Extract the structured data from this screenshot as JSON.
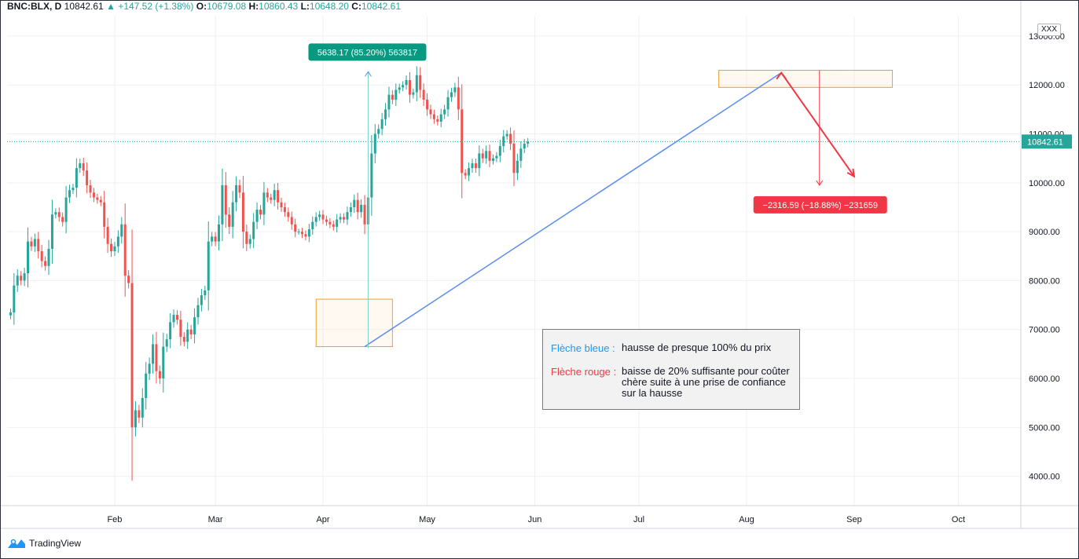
{
  "header": {
    "symbol": "BNC:BLX, D",
    "last": "10842.61",
    "change": "+147.52 (+1.38%)",
    "o_label": "O:",
    "open": "10679.08",
    "h_label": "H:",
    "high": "10860.43",
    "l_label": "L:",
    "low": "10648.20",
    "c_label": "C:",
    "close": "10842.61",
    "up_arrow": "▲"
  },
  "branding": {
    "name": "TradingView"
  },
  "currency_button": "XXX",
  "legend": {
    "blue_key": "Flèche bleue :",
    "blue_text": "hausse de presque 100% du prix",
    "red_key": "Flèche rouge :",
    "red_text": "baisse de 20% suffisante pour coûter chère suite à une prise de confiance sur la hausse"
  },
  "colors": {
    "up": "#26a69a",
    "down": "#ef5350",
    "blue_arrow": "#5b8def",
    "red_arrow": "#f23645",
    "box": "#f0a020"
  },
  "chart_data": {
    "type": "candlestick",
    "symbol": "BNC:BLX",
    "interval": "D",
    "y_ticks": [
      4000,
      5000,
      6000,
      7000,
      8000,
      9000,
      10000,
      11000,
      12000,
      13000
    ],
    "y_tick_labels": [
      "4000.00",
      "5000.00",
      "6000.00",
      "7000.00",
      "8000.00",
      "9000.00",
      "10000.00",
      "11000.00",
      "12000.00",
      "13000.00"
    ],
    "ylim": [
      3400,
      13400
    ],
    "x_ticks": [
      "Feb",
      "Mar",
      "Apr",
      "May",
      "Jun",
      "Jul",
      "Aug",
      "Sep",
      "Oct"
    ],
    "x_tick_days": [
      31,
      60,
      91,
      121,
      152,
      182,
      213,
      244,
      274
    ],
    "xlim": [
      0,
      292
    ],
    "grid": true,
    "last_price": 10842.61,
    "last_price_label": "10842.61",
    "close_series_start_day": 1,
    "close_series": [
      7350,
      7900,
      8100,
      8000,
      8150,
      8800,
      8700,
      8850,
      8600,
      8400,
      8300,
      8650,
      9350,
      9400,
      9300,
      9200,
      9700,
      9850,
      9900,
      10300,
      10400,
      10250,
      9950,
      9800,
      9700,
      9650,
      9600,
      9100,
      8750,
      8600,
      8700,
      8900,
      9150,
      8100,
      7950,
      5000,
      5350,
      5200,
      5600,
      6100,
      6300,
      6700,
      6150,
      6000,
      6650,
      6800,
      7150,
      7300,
      7200,
      6850,
      6750,
      7000,
      6900,
      7250,
      7500,
      7700,
      7800,
      8800,
      8900,
      8800,
      9150,
      9950,
      9350,
      9100,
      9600,
      9950,
      9800,
      9000,
      8750,
      8850,
      9200,
      9450,
      9350,
      9800,
      9700,
      9650,
      9850,
      9600,
      9500,
      9400,
      9300,
      9150,
      9000,
      9000,
      8950,
      8900,
      9050,
      9200,
      9300,
      9350,
      9250,
      9200,
      9150,
      9100,
      9250,
      9300,
      9250,
      9400,
      9500,
      9650,
      9400,
      9550,
      9150,
      9700,
      10600,
      11000,
      11100,
      11300,
      11500,
      11800,
      11700,
      11900,
      11950,
      12000,
      12100,
      11800,
      11850,
      12200,
      11900,
      11700,
      11500,
      11400,
      11300,
      11250,
      11400,
      11500,
      11750,
      11850,
      11950,
      11500,
      10200,
      10150,
      10300,
      10400,
      10300,
      10600,
      10500,
      10650,
      10450,
      10500,
      10550,
      10750,
      10950,
      11000,
      10800,
      10200,
      10450,
      10700,
      10800,
      10842.61
    ],
    "annotations": [
      {
        "type": "measure",
        "label": "5638.17 (85.20%) 563817",
        "from": {
          "day": 104,
          "price": 6620
        },
        "to": {
          "day": 104,
          "price": 12270
        }
      },
      {
        "type": "measure",
        "label": "−2316.59 (−18.88%) −231659",
        "from": {
          "day": 234,
          "price": 12300
        },
        "to": {
          "day": 234,
          "price": 9950
        }
      },
      {
        "type": "trend_line",
        "name": "Flèche bleue",
        "from": {
          "day": 103,
          "price": 6650
        },
        "to": {
          "day": 223,
          "price": 12250
        }
      },
      {
        "type": "trend_line",
        "name": "Flèche rouge",
        "from": {
          "day": 223,
          "price": 12250
        },
        "to": {
          "day": 244,
          "price": 10130
        }
      },
      {
        "type": "range_box",
        "from": {
          "day": 89,
          "price": 6650
        },
        "to": {
          "day": 111,
          "price": 7620
        }
      },
      {
        "type": "range_box",
        "from": {
          "day": 205,
          "price": 11950
        },
        "to": {
          "day": 255,
          "price": 12300
        }
      }
    ]
  }
}
